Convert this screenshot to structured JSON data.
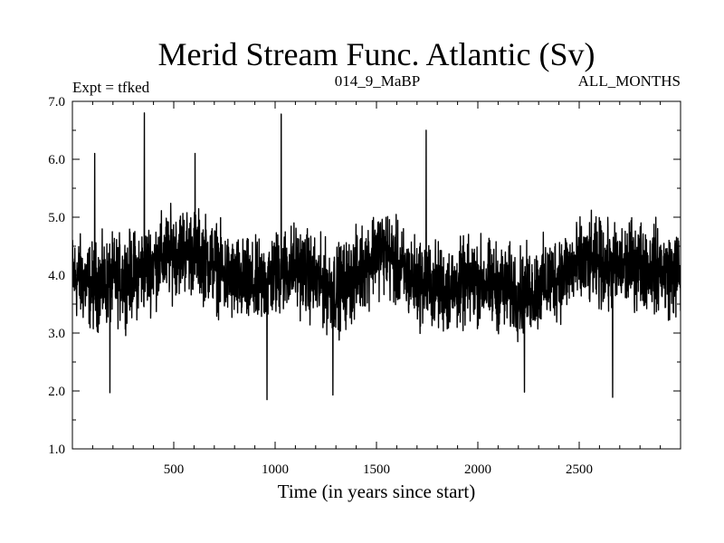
{
  "chart_data": {
    "type": "line",
    "title": "Merid Stream Func. Atlantic (Sv)",
    "subtitle_left": "Expt = tfked",
    "subtitle_center": "014_9_MaBP",
    "subtitle_right": "ALL_MONTHS",
    "xlabel": "Time (in years since start)",
    "ylabel": "",
    "xlim": [
      0,
      3000
    ],
    "ylim": [
      1.0,
      7.0
    ],
    "x_ticks": [
      500,
      1000,
      1500,
      2000,
      2500
    ],
    "x_tick_labels": [
      "500",
      "1000",
      "1500",
      "2000",
      "2500"
    ],
    "y_ticks": [
      1.0,
      2.0,
      3.0,
      4.0,
      5.0,
      6.0,
      7.0
    ],
    "y_tick_labels": [
      "1.0",
      "2.0",
      "3.0",
      "4.0",
      "5.0",
      "6.0",
      "7.0"
    ],
    "grid": false,
    "line_color": "#000000",
    "series": [
      {
        "x": [
          0,
          50,
          100,
          150,
          200,
          250,
          300,
          350,
          400,
          450,
          500,
          550,
          600,
          650,
          700,
          750,
          800,
          850,
          900,
          950,
          1000,
          1050,
          1100,
          1150,
          1200,
          1250,
          1300,
          1350,
          1400,
          1450,
          1500,
          1550,
          1600,
          1650,
          1700,
          1750,
          1800,
          1850,
          1900,
          1950,
          2000,
          2050,
          2100,
          2150,
          2200,
          2250,
          2300,
          2350,
          2400,
          2450,
          2500,
          2550,
          2600,
          2650,
          2700,
          2750,
          2800,
          2850,
          2900,
          2950,
          3000
        ],
        "values": [
          4.0,
          3.9,
          3.8,
          3.85,
          3.9,
          3.95,
          4.0,
          4.1,
          4.2,
          4.3,
          4.4,
          4.45,
          4.4,
          4.3,
          4.2,
          4.0,
          3.9,
          3.85,
          3.8,
          3.9,
          4.0,
          4.1,
          4.15,
          4.05,
          3.9,
          3.8,
          3.75,
          3.85,
          4.0,
          4.2,
          4.45,
          4.4,
          4.15,
          4.0,
          3.9,
          3.85,
          3.8,
          3.75,
          3.8,
          3.85,
          3.9,
          3.85,
          3.8,
          3.75,
          3.7,
          3.7,
          3.8,
          3.9,
          4.0,
          4.1,
          4.15,
          4.2,
          4.2,
          4.1,
          4.1,
          4.2,
          4.2,
          4.15,
          4.1,
          4.0,
          4.05
        ],
        "noise_amplitude": 0.85,
        "extremes": {
          "max": [
            [
              355,
              6.8
            ],
            [
              1030,
              6.78
            ],
            [
              1745,
              6.5
            ],
            [
              110,
              6.1
            ],
            [
              605,
              6.1
            ]
          ],
          "min": [
            [
              960,
              1.85
            ],
            [
              185,
              1.97
            ],
            [
              1285,
              1.93
            ],
            [
              2665,
              1.89
            ],
            [
              2230,
              1.98
            ]
          ]
        }
      }
    ]
  }
}
